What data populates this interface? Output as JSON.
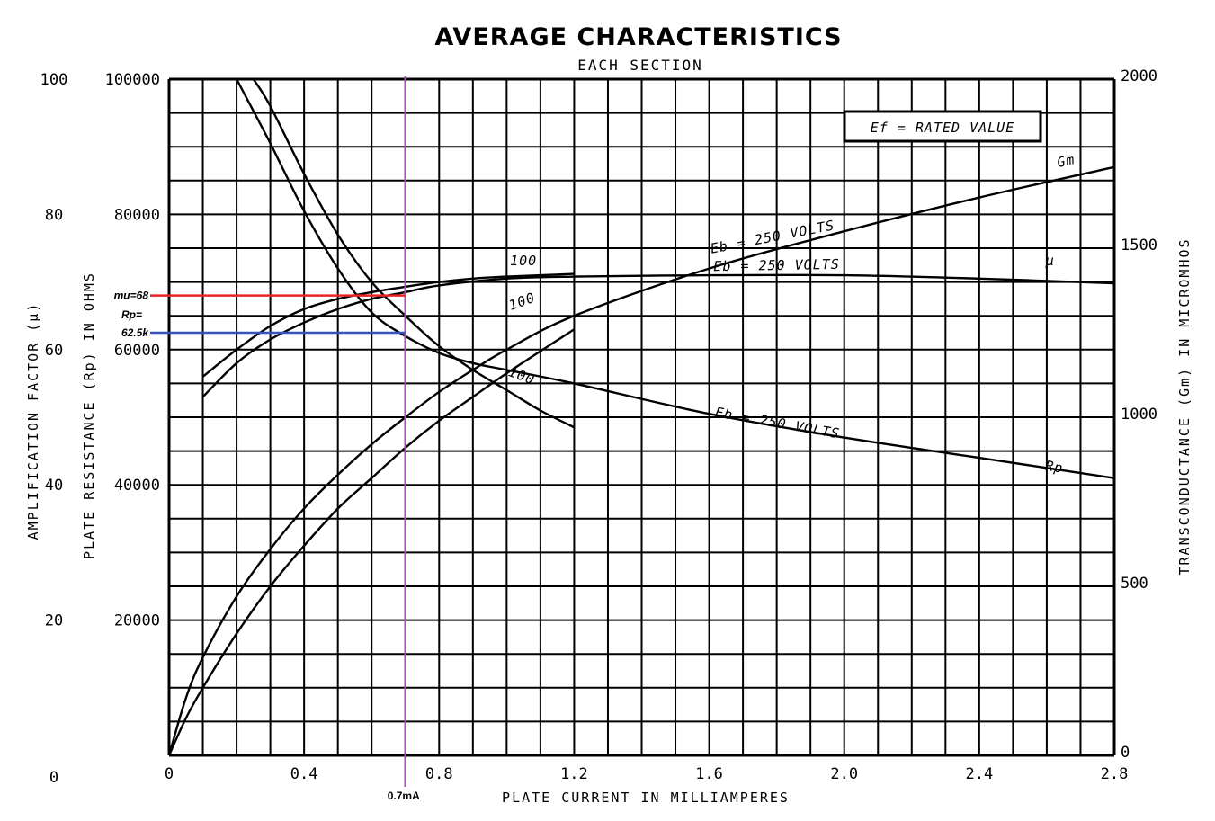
{
  "chart_data": {
    "type": "line",
    "title": "AVERAGE CHARACTERISTICS",
    "subtitle": "EACH SECTION",
    "xlabel": "PLATE CURRENT IN MILLIAMPERES",
    "ylabel_mu": "AMPLIFICATION FACTOR (μ)",
    "ylabel_rp": "PLATE RESISTANCE (Rp) IN OHMS",
    "ylabel_gm": "TRANSCONDUCTANCE (Gm) IN MICROMHOS",
    "xlim": [
      0,
      2.8
    ],
    "ylim_mu": [
      0,
      100
    ],
    "ylim_rp": [
      0,
      100000
    ],
    "ylim_gm": [
      0,
      2000
    ],
    "grid": true,
    "x_ticks": [
      {
        "v": 0,
        "t": "0"
      },
      {
        "v": 0.4,
        "t": "0.4"
      },
      {
        "v": 0.8,
        "t": "0.8"
      },
      {
        "v": 1.2,
        "t": "1.2"
      },
      {
        "v": 1.6,
        "t": "1.6"
      },
      {
        "v": 2.0,
        "t": "2.0"
      },
      {
        "v": 2.4,
        "t": "2.4"
      },
      {
        "v": 2.8,
        "t": "2.8"
      }
    ],
    "mu_ticks": [
      {
        "v": 0,
        "t": "0"
      },
      {
        "v": 20,
        "t": "20"
      },
      {
        "v": 40,
        "t": "40"
      },
      {
        "v": 60,
        "t": "60"
      },
      {
        "v": 80,
        "t": "80"
      },
      {
        "v": 100,
        "t": "100"
      }
    ],
    "rp_ticks": [
      {
        "v": 20000,
        "t": "20000"
      },
      {
        "v": 40000,
        "t": "40000"
      },
      {
        "v": 60000,
        "t": "60000"
      },
      {
        "v": 80000,
        "t": "80000"
      },
      {
        "v": 100000,
        "t": "100000"
      }
    ],
    "gm_ticks": [
      {
        "v": 0,
        "t": "0"
      },
      {
        "v": 500,
        "t": "500"
      },
      {
        "v": 1000,
        "t": "1000"
      },
      {
        "v": 1500,
        "t": "1500"
      },
      {
        "v": 2000,
        "t": "2000"
      }
    ],
    "series": [
      {
        "axis": "gm",
        "values": [
          [
            0.0,
            0
          ],
          [
            0.05,
            170
          ],
          [
            0.1,
            290
          ],
          [
            0.2,
            470
          ],
          [
            0.3,
            610
          ],
          [
            0.4,
            730
          ],
          [
            0.5,
            830
          ],
          [
            0.6,
            920
          ],
          [
            0.7,
            1000
          ],
          [
            0.8,
            1075
          ],
          [
            0.9,
            1140
          ],
          [
            1.0,
            1200
          ],
          [
            1.2,
            1300
          ],
          [
            1.6,
            1440
          ],
          [
            2.0,
            1550
          ],
          [
            2.4,
            1650
          ],
          [
            2.8,
            1740
          ]
        ]
      },
      {
        "axis": "gm",
        "values": [
          [
            0.0,
            0
          ],
          [
            0.05,
            110
          ],
          [
            0.1,
            200
          ],
          [
            0.2,
            360
          ],
          [
            0.3,
            500
          ],
          [
            0.4,
            620
          ],
          [
            0.5,
            730
          ],
          [
            0.6,
            820
          ],
          [
            0.7,
            910
          ],
          [
            0.8,
            990
          ],
          [
            0.9,
            1060
          ],
          [
            1.0,
            1130
          ],
          [
            1.2,
            1260
          ]
        ]
      },
      {
        "axis": "mu",
        "values": [
          [
            0.1,
            56
          ],
          [
            0.2,
            60
          ],
          [
            0.3,
            63.5
          ],
          [
            0.4,
            66
          ],
          [
            0.5,
            67.5
          ],
          [
            0.6,
            68.5
          ],
          [
            0.7,
            69.3
          ],
          [
            0.8,
            70
          ],
          [
            0.9,
            70.5
          ],
          [
            1.0,
            70.8
          ],
          [
            1.1,
            71
          ],
          [
            1.2,
            71.2
          ]
        ]
      },
      {
        "axis": "mu",
        "values": [
          [
            0.1,
            53
          ],
          [
            0.2,
            58
          ],
          [
            0.3,
            61.5
          ],
          [
            0.4,
            64
          ],
          [
            0.5,
            66
          ],
          [
            0.6,
            67.5
          ],
          [
            0.7,
            68.5
          ],
          [
            0.8,
            69.5
          ],
          [
            1.0,
            70.5
          ],
          [
            1.2,
            70.8
          ],
          [
            1.6,
            71
          ],
          [
            2.0,
            71
          ],
          [
            2.4,
            70.5
          ],
          [
            2.8,
            69.8
          ]
        ]
      },
      {
        "axis": "rp",
        "values": [
          [
            0.2,
            100000
          ],
          [
            0.3,
            90500
          ],
          [
            0.4,
            80500
          ],
          [
            0.5,
            72000
          ],
          [
            0.6,
            65500
          ],
          [
            0.7,
            62000
          ],
          [
            0.8,
            59500
          ],
          [
            0.9,
            58000
          ],
          [
            1.0,
            57000
          ],
          [
            1.2,
            55000
          ],
          [
            1.6,
            50500
          ],
          [
            2.0,
            47000
          ],
          [
            2.4,
            44000
          ],
          [
            2.8,
            41000
          ]
        ]
      },
      {
        "axis": "rp",
        "values": [
          [
            0.25,
            100000
          ],
          [
            0.3,
            96000
          ],
          [
            0.4,
            86000
          ],
          [
            0.5,
            77000
          ],
          [
            0.6,
            70000
          ],
          [
            0.7,
            65000
          ],
          [
            0.8,
            60500
          ],
          [
            0.9,
            57000
          ],
          [
            1.0,
            54000
          ],
          [
            1.1,
            51000
          ],
          [
            1.2,
            48500
          ]
        ]
      }
    ],
    "curve_labels": [
      {
        "text": "Gm",
        "x": 2.66,
        "gm": 1745,
        "rot": -12
      },
      {
        "text": "Eb = 250 VOLTS",
        "x": 1.79,
        "gm": 1520,
        "rot": -11
      },
      {
        "text": "Eb = 250 VOLTS",
        "x": 1.8,
        "mu": 71.8,
        "rot": -1
      },
      {
        "text": "μ",
        "x": 2.61,
        "mu": 72.5,
        "rot": 0
      },
      {
        "text": "Eb = 250 VOLTS",
        "x": 1.8,
        "rp": 48500,
        "rot": 10
      },
      {
        "text": "Rp",
        "x": 2.62,
        "rp": 42000,
        "rot": 10
      },
      {
        "text": "100",
        "x": 1.05,
        "mu": 72.5,
        "rot": 0
      },
      {
        "text": "100",
        "x": 1.05,
        "mu": 66.5,
        "rot": -20
      },
      {
        "text": "100",
        "x": 1.04,
        "rp": 55500,
        "rot": 20
      }
    ],
    "legend_box": {
      "text": "Ef = RATED VALUE",
      "placement": "top-right"
    },
    "annotations": {
      "x_marker": {
        "value": 0.7,
        "label": "0.7mA",
        "color": "#a050b0"
      },
      "mu_marker": {
        "value": 68,
        "label": "mu=68",
        "color": "#e8242a"
      },
      "rp_marker": {
        "value": 62500,
        "label_line1": "Rp=",
        "label_line2": "62.5k",
        "color": "#3355bb"
      }
    }
  }
}
